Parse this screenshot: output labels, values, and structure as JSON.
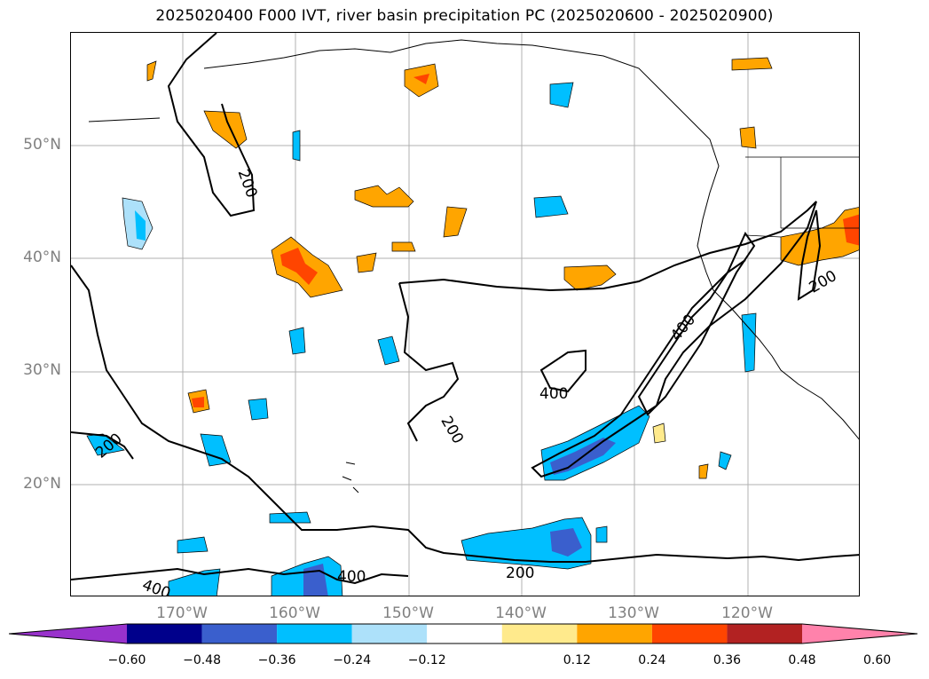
{
  "title": "2025020400 F000 IVT, river basin precipitation PC (2025020600 - 2025020900)",
  "map": {
    "lat_labels": [
      "50°N",
      "40°N",
      "30°N",
      "20°N"
    ],
    "lon_labels": [
      "170°W",
      "160°W",
      "150°W",
      "140°W",
      "130°W",
      "120°W"
    ],
    "ivt_contour_labels": [
      "200",
      "200",
      "200",
      "200",
      "400",
      "400",
      "400",
      "400",
      "200"
    ]
  },
  "colorbar": {
    "tick_labels": [
      "−0.60",
      "−0.48",
      "−0.36",
      "−0.24",
      "−0.12",
      "0.12",
      "0.24",
      "0.36",
      "0.48",
      "0.60"
    ],
    "colors": [
      "#9932CC",
      "#00008B",
      "#3A5FCD",
      "#00BFFF",
      "#ADE1FA",
      "#FFFFFF",
      "#FFEA8C",
      "#FFA500",
      "#FF4500",
      "#B22222",
      "#FF82AB"
    ]
  },
  "colors": {
    "gridline": "#B0B0B0",
    "contour": "#000000",
    "label_gray": "#808080"
  }
}
